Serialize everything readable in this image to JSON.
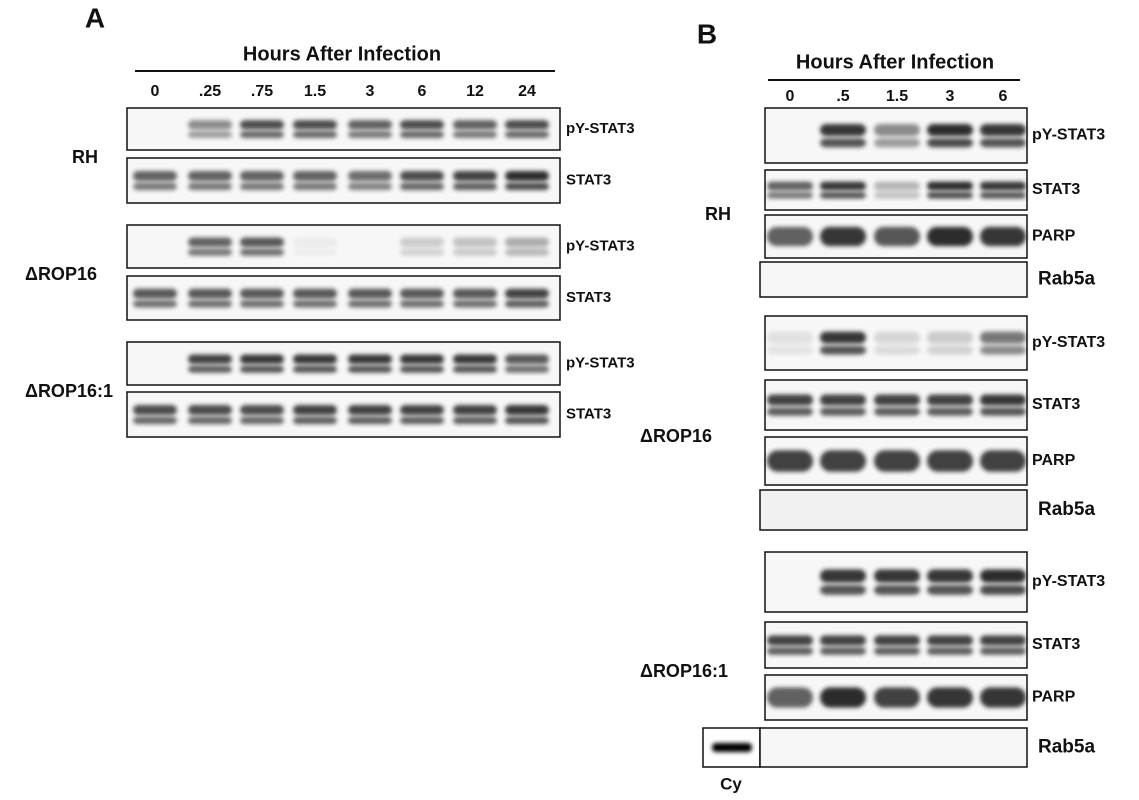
{
  "panels": [
    {
      "label": "A",
      "title": "Hours After Infection",
      "times": [
        "0",
        ".25",
        ".75",
        "1.5",
        "3",
        "6",
        "12",
        "24"
      ],
      "groups": [
        {
          "name": "RH",
          "blots": [
            "pY-STAT3",
            "STAT3"
          ]
        },
        {
          "name": "ΔROP16",
          "blots": [
            "pY-STAT3",
            "STAT3"
          ]
        },
        {
          "name": "ΔROP16:1",
          "blots": [
            "pY-STAT3",
            "STAT3"
          ]
        }
      ]
    },
    {
      "label": "B",
      "title": "Hours After Infection",
      "times": [
        "0",
        ".5",
        "1.5",
        "3",
        "6"
      ],
      "groups": [
        {
          "name": "RH",
          "blots": [
            "pY-STAT3",
            "STAT3",
            "PARP",
            "Rab5a"
          ]
        },
        {
          "name": "ΔROP16",
          "blots": [
            "pY-STAT3",
            "STAT3",
            "PARP",
            "Rab5a"
          ]
        },
        {
          "name": "ΔROP16:1",
          "blots": [
            "pY-STAT3",
            "STAT3",
            "PARP",
            "Rab5a"
          ]
        }
      ]
    }
  ],
  "control_label": "Cy"
}
